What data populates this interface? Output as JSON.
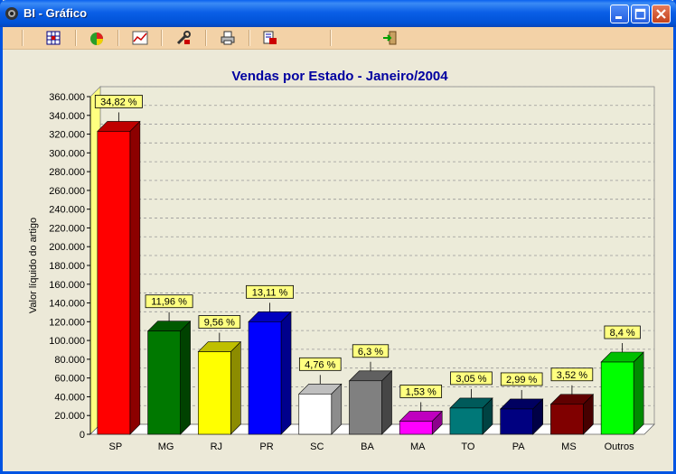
{
  "window": {
    "title": "BI - Gráfico"
  },
  "toolbar": {
    "buttons": [
      {
        "icon": "grid-icon"
      },
      {
        "icon": "pie-chart-icon"
      },
      {
        "icon": "line-chart-icon"
      },
      {
        "icon": "tools-icon"
      },
      {
        "icon": "printer-icon"
      },
      {
        "icon": "export-icon"
      },
      {
        "icon": "exit-icon"
      }
    ]
  },
  "chart_data": {
    "type": "bar",
    "title": "Vendas por Estado - Janeiro/2004",
    "ylabel": "Valor líquido do artigo",
    "xlabel": "",
    "ylim": [
      0,
      360000
    ],
    "yticks": [
      "0",
      "20.000",
      "40.000",
      "60.000",
      "80.000",
      "100.000",
      "120.000",
      "140.000",
      "160.000",
      "180.000",
      "200.000",
      "220.000",
      "240.000",
      "260.000",
      "280.000",
      "300.000",
      "320.000",
      "340.000",
      "360.000"
    ],
    "categories": [
      "SP",
      "MG",
      "RJ",
      "PR",
      "SC",
      "BA",
      "MA",
      "TO",
      "PA",
      "MS",
      "Outros"
    ],
    "values": [
      323000,
      110000,
      88000,
      120000,
      43000,
      57000,
      14000,
      28000,
      27000,
      32000,
      77000
    ],
    "labels": [
      "34,82 %",
      "11,96 %",
      "9,56 %",
      "13,11 %",
      "4,76 %",
      "6,3 %",
      "1,53 %",
      "3,05 %",
      "2,99 %",
      "3,52 %",
      "8,4 %"
    ],
    "colors": [
      "#ff0000",
      "#007800",
      "#ffff00",
      "#0000ff",
      "#ffffff",
      "#808080",
      "#ff00ff",
      "#007878",
      "#000080",
      "#800000",
      "#00ff00"
    ],
    "grid": true,
    "legend": "none"
  }
}
